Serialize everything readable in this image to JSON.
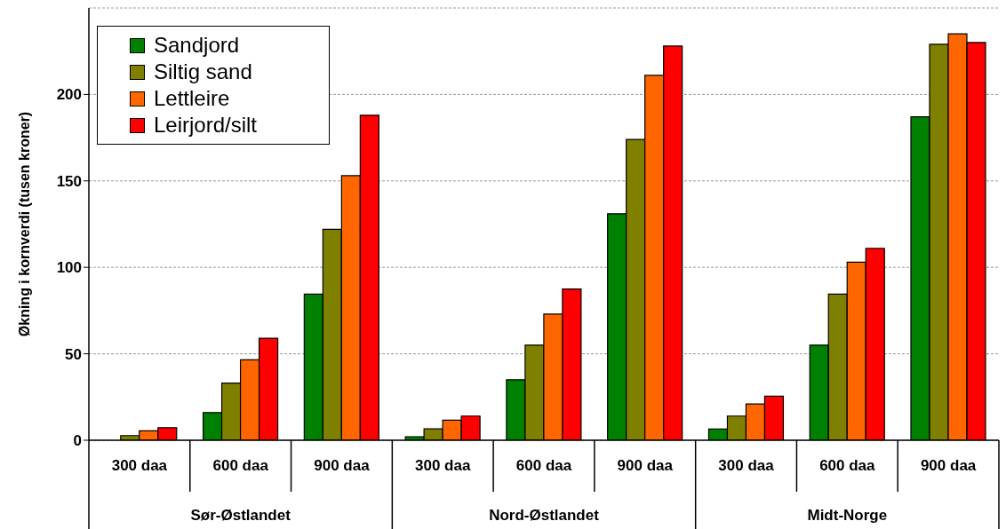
{
  "chart_data": {
    "type": "bar",
    "ylabel": "Økning i kornverdi (tusen kroner)",
    "categories": [
      "300 daa",
      "600 daa",
      "900 daa",
      "300 daa",
      "600 daa",
      "900 daa",
      "300 daa",
      "600 daa",
      "900 daa"
    ],
    "annotations": [
      "Sør-Østlandet",
      "Nord-Østlandet",
      "Midt-Norge"
    ],
    "series": [
      {
        "name": "Sandjord",
        "color": "#008000",
        "values": [
          0,
          16,
          84.5,
          2,
          35,
          131,
          6.5,
          55,
          187
        ]
      },
      {
        "name": "Siltig sand",
        "color": "#808000",
        "values": [
          2.7,
          33,
          122,
          6.6,
          55,
          174,
          14,
          84.5,
          229
        ]
      },
      {
        "name": "Lettleire",
        "color": "#ff6600",
        "values": [
          5.5,
          46.5,
          153,
          11.6,
          73,
          211,
          21,
          103,
          235
        ]
      },
      {
        "name": "Leirjord/silt",
        "color": "#ff0000",
        "values": [
          7.3,
          59,
          188,
          14,
          87.5,
          228,
          25.5,
          111,
          230
        ]
      }
    ],
    "ylim": [
      0,
      250
    ],
    "yticks": [
      0,
      50,
      100,
      150,
      200
    ],
    "grid": "y",
    "legend": "top left"
  }
}
